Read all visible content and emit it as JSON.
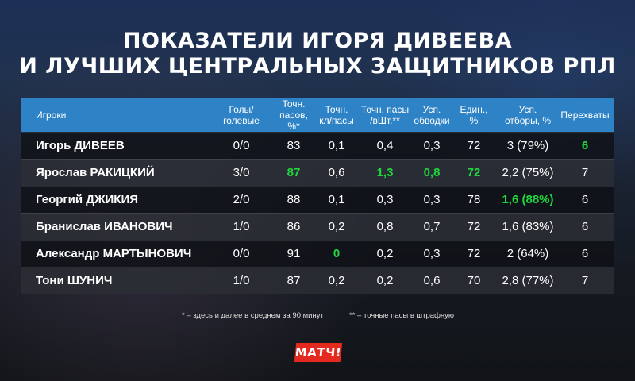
{
  "title": {
    "line1": "ПОКАЗАТЕЛИ ИГОРЯ ДИВЕЕВА",
    "line2": "И ЛУЧШИХ ЦЕНТРАЛЬНЫХ ЗАЩИТНИКОВ РПЛ"
  },
  "table": {
    "headers": [
      "Игроки",
      "Голы/\nголевые",
      "Точн.\nпасов, %*",
      "Точн.\nкл/пасы",
      "Точн. пасы\n/вШт.**",
      "Усп.\nобводки",
      "Един., %",
      "Усп.\nотборы, %",
      "Перехваты"
    ],
    "rows": [
      [
        "Игорь ДИВЕЕВ",
        "0/0",
        "83",
        "0,1",
        "0,4",
        "0,3",
        "72",
        "3 (79%)",
        "6"
      ],
      [
        "Ярослав РАКИЦКИЙ",
        "3/0",
        "87",
        "0,6",
        "1,3",
        "0,8",
        "72",
        "2,2 (75%)",
        "7"
      ],
      [
        "Георгий ДЖИКИЯ",
        "2/0",
        "88",
        "0,1",
        "0,3",
        "0,3",
        "78",
        "1,6 (88%)",
        "6"
      ],
      [
        "Бранислав ИВАНОВИЧ",
        "1/0",
        "86",
        "0,2",
        "0,8",
        "0,7",
        "72",
        "1,6 (83%)",
        "6"
      ],
      [
        "Александр МАРТЫНОВИЧ",
        "0/0",
        "91",
        "0",
        "0,2",
        "0,3",
        "72",
        "2 (64%)",
        "6"
      ],
      [
        "Тони ШУНИЧ",
        "1/0",
        "87",
        "0,2",
        "0,2",
        "0,6",
        "70",
        "2,8 (77%)",
        "7"
      ]
    ],
    "highlighted_cells": [
      [
        0,
        7
      ],
      [
        1,
        1
      ],
      [
        1,
        3
      ],
      [
        1,
        4
      ],
      [
        1,
        5
      ],
      [
        1,
        8
      ],
      [
        2,
        6
      ],
      [
        4,
        2
      ],
      [
        5,
        8
      ]
    ],
    "colors": {
      "header_bg": "#2e83c6",
      "highlight": "#21d63c",
      "row_dark": "#0f1116",
      "row_light": "#2c2e34"
    }
  },
  "footnotes": {
    "left": "* – здесь и далее в среднем за 90 минут",
    "right": "** – точные пасы в штрафную"
  },
  "logo": {
    "text": "МАТЧ!",
    "color": "#e42a1e"
  }
}
